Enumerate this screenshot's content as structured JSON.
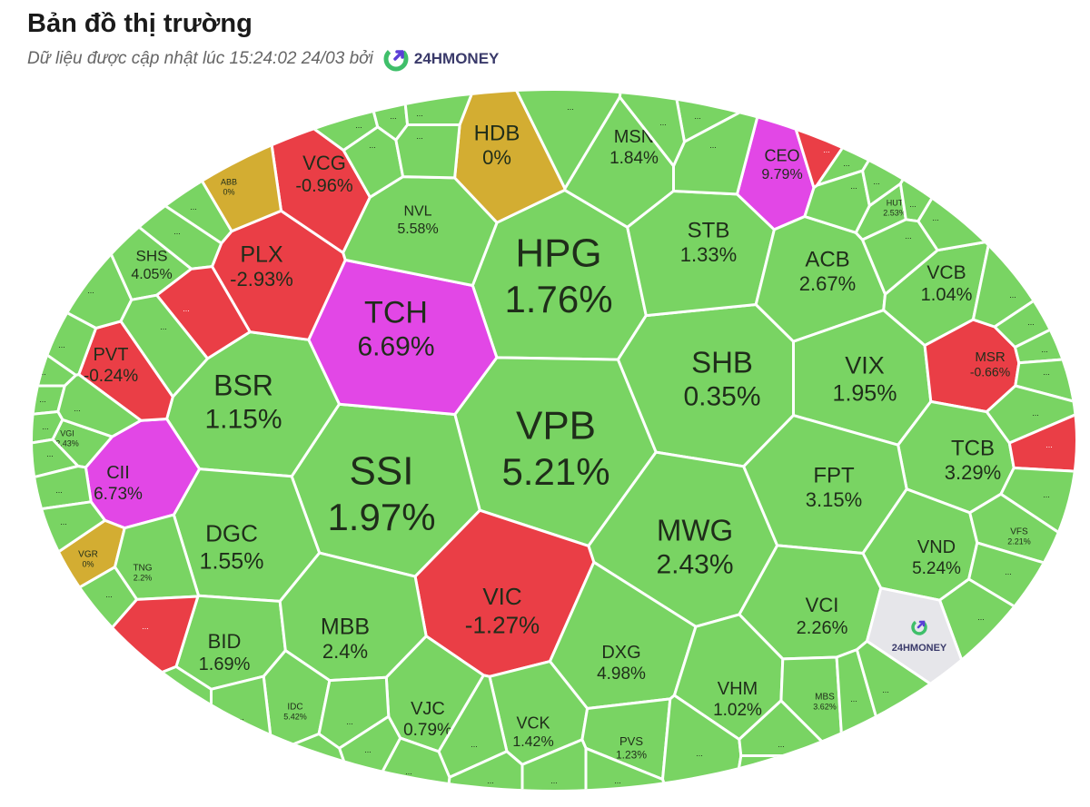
{
  "header": {
    "title": "Bản đồ thị trường",
    "subtitle": "Dữ liệu được cập nhật lúc 15:24:02 24/03 bởi",
    "brand": "24HMONEY",
    "brand_icon": "logo-icon"
  },
  "colors": {
    "up": "#79d463",
    "down": "#ea3e46",
    "ceiling": "#e247e6",
    "flat": "#d3ad32",
    "na": "#e6e6ea",
    "border": "#ffffff"
  },
  "chart_data": {
    "type": "treemap-voronoi",
    "title": "Bản đồ thị trường",
    "value_unit": "%",
    "tiles": [
      {
        "symbol": "HPG",
        "change": "1.76%",
        "status": "up"
      },
      {
        "symbol": "VPB",
        "change": "5.21%",
        "status": "up"
      },
      {
        "symbol": "SSI",
        "change": "1.97%",
        "status": "up"
      },
      {
        "symbol": "TCH",
        "change": "6.69%",
        "status": "ceiling"
      },
      {
        "symbol": "SHB",
        "change": "0.35%",
        "status": "up"
      },
      {
        "symbol": "MWG",
        "change": "2.43%",
        "status": "up"
      },
      {
        "symbol": "BSR",
        "change": "1.15%",
        "status": "up"
      },
      {
        "symbol": "VIC",
        "change": "-1.27%",
        "status": "down"
      },
      {
        "symbol": "PLX",
        "change": "-2.93%",
        "status": "down"
      },
      {
        "symbol": "VCG",
        "change": "-0.96%",
        "status": "down"
      },
      {
        "symbol": "NVL",
        "change": "5.58%",
        "status": "up"
      },
      {
        "symbol": "HDB",
        "change": "0%",
        "status": "flat"
      },
      {
        "symbol": "MSN",
        "change": "1.84%",
        "status": "up"
      },
      {
        "symbol": "STB",
        "change": "1.33%",
        "status": "up"
      },
      {
        "symbol": "CEO",
        "change": "9.79%",
        "status": "ceiling"
      },
      {
        "symbol": "ACB",
        "change": "2.67%",
        "status": "up"
      },
      {
        "symbol": "VCB",
        "change": "1.04%",
        "status": "up"
      },
      {
        "symbol": "VIX",
        "change": "1.95%",
        "status": "up"
      },
      {
        "symbol": "MSR",
        "change": "-0.66%",
        "status": "down"
      },
      {
        "symbol": "TCB",
        "change": "3.29%",
        "status": "up"
      },
      {
        "symbol": "FPT",
        "change": "3.15%",
        "status": "up"
      },
      {
        "symbol": "VND",
        "change": "5.24%",
        "status": "up"
      },
      {
        "symbol": "VCI",
        "change": "2.26%",
        "status": "up"
      },
      {
        "symbol": "DGC",
        "change": "1.55%",
        "status": "up"
      },
      {
        "symbol": "CII",
        "change": "6.73%",
        "status": "ceiling"
      },
      {
        "symbol": "PVT",
        "change": "-0.24%",
        "status": "down"
      },
      {
        "symbol": "SHS",
        "change": "4.05%",
        "status": "up"
      },
      {
        "symbol": "BID",
        "change": "1.69%",
        "status": "up"
      },
      {
        "symbol": "MBB",
        "change": "2.4%",
        "status": "up"
      },
      {
        "symbol": "DXG",
        "change": "4.98%",
        "status": "up"
      },
      {
        "symbol": "VHM",
        "change": "1.02%",
        "status": "up"
      },
      {
        "symbol": "VJC",
        "change": "0.79%",
        "status": "up"
      },
      {
        "symbol": "VCK",
        "change": "1.42%",
        "status": "up"
      },
      {
        "symbol": "PVS",
        "change": "1.23%",
        "status": "up"
      },
      {
        "symbol": "ABB",
        "change": "0%",
        "status": "flat"
      },
      {
        "symbol": "HUT",
        "change": "2.53%",
        "status": "up"
      },
      {
        "symbol": "VGI",
        "change": "2.43%",
        "status": "up"
      },
      {
        "symbol": "VGR",
        "change": "0%",
        "status": "flat"
      },
      {
        "symbol": "TNG",
        "change": "2.2%",
        "status": "up"
      },
      {
        "symbol": "IDC",
        "change": "5.42%",
        "status": "up"
      },
      {
        "symbol": "MBS",
        "change": "3.62%",
        "status": "up"
      },
      {
        "symbol": "VFS",
        "change": "2.21%",
        "status": "up"
      }
    ],
    "small_tiles": [
      {
        "label": "...",
        "status": "up"
      },
      {
        "label": "...",
        "status": "up"
      },
      {
        "label": "...",
        "status": "up"
      },
      {
        "label": "...",
        "status": "up"
      },
      {
        "label": "...",
        "status": "up"
      },
      {
        "label": "...",
        "status": "up"
      },
      {
        "label": "...",
        "status": "up"
      },
      {
        "label": "...",
        "status": "up"
      },
      {
        "label": "...",
        "status": "up"
      },
      {
        "label": "...",
        "status": "down"
      },
      {
        "label": "...",
        "status": "up"
      },
      {
        "label": "...",
        "status": "up"
      },
      {
        "label": "...",
        "status": "up"
      },
      {
        "label": "...",
        "status": "up"
      },
      {
        "label": "...",
        "status": "up"
      },
      {
        "label": "...",
        "status": "up"
      },
      {
        "label": "...",
        "status": "up"
      },
      {
        "label": "...",
        "status": "up"
      },
      {
        "label": "...",
        "status": "up"
      },
      {
        "label": "...",
        "status": "down"
      },
      {
        "label": "...",
        "status": "up"
      },
      {
        "label": "...",
        "status": "up"
      },
      {
        "label": "...",
        "status": "up"
      },
      {
        "label": "...",
        "status": "up"
      },
      {
        "label": "...",
        "status": "up"
      },
      {
        "label": "...",
        "status": "up"
      },
      {
        "label": "...",
        "status": "up"
      },
      {
        "label": "...",
        "status": "up"
      },
      {
        "label": "...",
        "status": "up"
      },
      {
        "label": "...",
        "status": "up"
      },
      {
        "label": "...",
        "status": "down"
      },
      {
        "label": "...",
        "status": "up"
      },
      {
        "label": "...",
        "status": "up"
      },
      {
        "label": "...",
        "status": "up"
      },
      {
        "label": "...",
        "status": "up"
      },
      {
        "label": "...",
        "status": "up"
      },
      {
        "label": "...",
        "status": "up"
      },
      {
        "label": "...",
        "status": "up"
      },
      {
        "label": "...",
        "status": "up"
      },
      {
        "label": "...",
        "status": "up"
      },
      {
        "label": "...",
        "status": "up"
      },
      {
        "label": "...",
        "status": "up"
      },
      {
        "label": "...",
        "status": "up"
      },
      {
        "label": "...",
        "status": "up"
      },
      {
        "label": "...",
        "status": "up"
      },
      {
        "label": "...",
        "status": "down"
      },
      {
        "label": "...",
        "status": "up"
      },
      {
        "label": "...",
        "status": "up"
      },
      {
        "label": "...",
        "status": "up"
      },
      {
        "label": "...",
        "status": "up"
      },
      {
        "label": "...",
        "status": "up"
      },
      {
        "label": "...",
        "status": "up"
      },
      {
        "label": "...",
        "status": "up"
      },
      {
        "label": "...",
        "status": "up"
      },
      {
        "label": "...",
        "status": "up"
      }
    ],
    "watermark_tile": {
      "label": "24HMONEY",
      "status": "na"
    }
  }
}
